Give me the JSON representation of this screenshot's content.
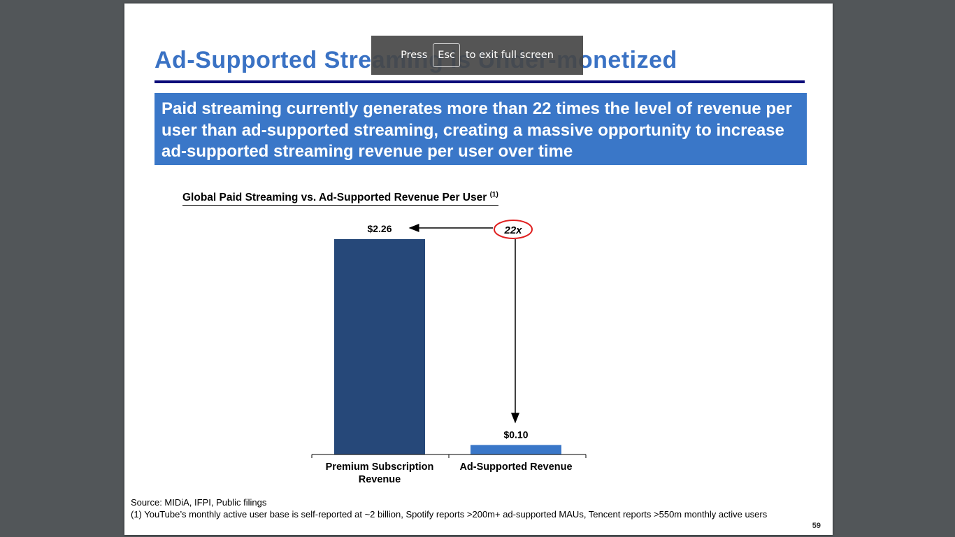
{
  "slide": {
    "title": "Ad-Supported Streaming is Under-monetized",
    "banner": "Paid streaming currently generates more than 22 times the level of revenue per user than ad-supported streaming, creating a massive opportunity to increase ad-supported streaming revenue per user over time",
    "chart_heading": "Global Paid Streaming vs. Ad-Supported Revenue Per User",
    "chart_heading_note": "(1)",
    "source": "Source: MIDiA, IFPI, Public filings",
    "footnote": "(1) YouTube’s monthly active user base is self-reported at ~2 billion, Spotify reports >200m+ ad-supported MAUs, Tencent reports >550m monthly active users",
    "page_number": "59"
  },
  "chart_data": {
    "type": "bar",
    "title": "Global Paid Streaming vs. Ad-Supported Revenue Per User",
    "categories": [
      "Premium Subscription Revenue",
      "Ad-Supported Revenue"
    ],
    "values": [
      2.26,
      0.1
    ],
    "value_labels": [
      "$2.26",
      "$0.10"
    ],
    "bar_colors": [
      "#264879",
      "#3a77c8"
    ],
    "annotation": "22x",
    "ylim": [
      0,
      2.26
    ],
    "grid": false,
    "legend": "none"
  },
  "overlay": {
    "prefix": "Press",
    "key": "Esc",
    "suffix": "to exit full screen"
  }
}
